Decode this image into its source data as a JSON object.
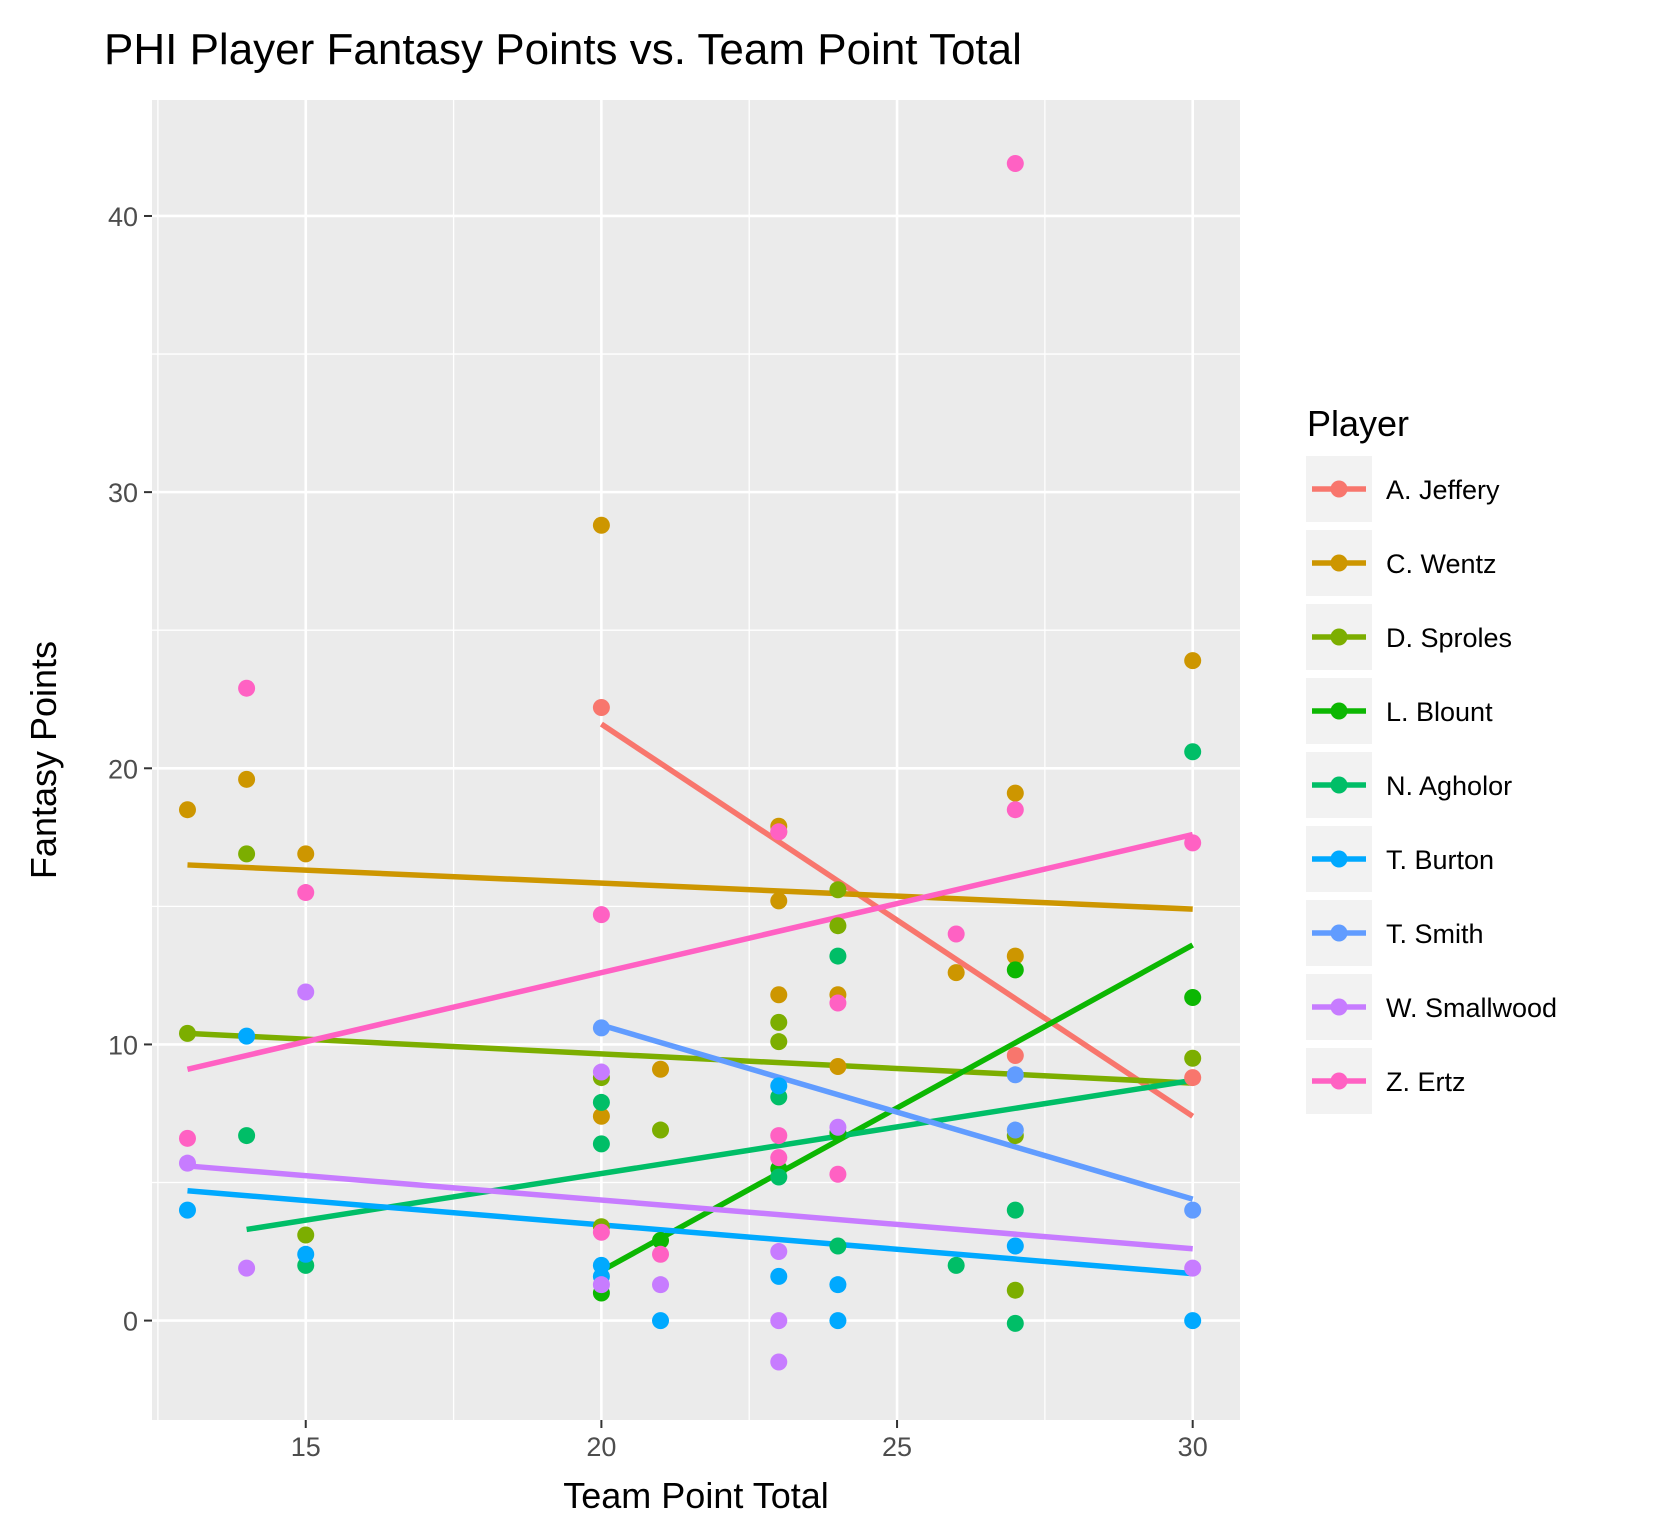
{
  "chart_data": {
    "type": "scatter",
    "title": "PHI Player Fantasy Points vs. Team Point Total",
    "xlabel": "Team Point Total",
    "ylabel": "Fantasy Points",
    "xlim": [
      12.4,
      30.8
    ],
    "ylim": [
      -3.6,
      44.2
    ],
    "xticks": [
      15,
      20,
      25,
      30
    ],
    "yticks": [
      0,
      10,
      20,
      30,
      40
    ],
    "grid": true,
    "legend_title": "Player",
    "legend_position": "right",
    "series": [
      {
        "name": "A. Jeffery",
        "color": "#F8766D",
        "points": [
          [
            20,
            22.2
          ],
          [
            23,
            17.7
          ],
          [
            27,
            9.6
          ],
          [
            30,
            8.8
          ]
        ],
        "trend": [
          [
            20,
            21.6
          ],
          [
            30,
            7.4
          ]
        ]
      },
      {
        "name": "C. Wentz",
        "color": "#CD9600",
        "points": [
          [
            13,
            18.5
          ],
          [
            14,
            19.6
          ],
          [
            15,
            16.9
          ],
          [
            20,
            28.8
          ],
          [
            20,
            7.4
          ],
          [
            21,
            9.1
          ],
          [
            23,
            17.9
          ],
          [
            23,
            15.2
          ],
          [
            23,
            11.8
          ],
          [
            24,
            11.8
          ],
          [
            24,
            9.2
          ],
          [
            26,
            12.6
          ],
          [
            27,
            19.1
          ],
          [
            27,
            13.2
          ],
          [
            30,
            23.9
          ]
        ],
        "trend": [
          [
            13,
            16.5
          ],
          [
            30,
            14.9
          ]
        ]
      },
      {
        "name": "D. Sproles",
        "color": "#7CAE00",
        "points": [
          [
            13,
            10.4
          ],
          [
            14,
            16.9
          ],
          [
            15,
            3.1
          ],
          [
            20,
            8.8
          ],
          [
            20,
            3.4
          ],
          [
            21,
            6.9
          ],
          [
            23,
            10.8
          ],
          [
            23,
            10.1
          ],
          [
            24,
            15.6
          ],
          [
            24,
            14.3
          ],
          [
            27,
            6.7
          ],
          [
            27,
            1.1
          ],
          [
            30,
            9.5
          ]
        ],
        "trend": [
          [
            13,
            10.4
          ],
          [
            30,
            8.6
          ]
        ]
      },
      {
        "name": "L. Blount",
        "color": "#0CB702",
        "points": [
          [
            20,
            1.0
          ],
          [
            21,
            2.9
          ],
          [
            23,
            5.5
          ],
          [
            24,
            6.8
          ],
          [
            27,
            12.7
          ],
          [
            30,
            11.7
          ]
        ],
        "trend": [
          [
            20,
            1.8
          ],
          [
            30,
            13.6
          ]
        ]
      },
      {
        "name": "N. Agholor",
        "color": "#00BE67",
        "points": [
          [
            14,
            6.7
          ],
          [
            15,
            2.0
          ],
          [
            20,
            7.9
          ],
          [
            20,
            6.4
          ],
          [
            23,
            8.1
          ],
          [
            23,
            5.2
          ],
          [
            24,
            13.2
          ],
          [
            24,
            2.7
          ],
          [
            26,
            2.0
          ],
          [
            27,
            4.0
          ],
          [
            27,
            -0.1
          ],
          [
            30,
            20.6
          ]
        ],
        "trend": [
          [
            14,
            3.3
          ],
          [
            30,
            8.7
          ]
        ]
      },
      {
        "name": "T. Burton",
        "color": "#00A9FF",
        "points": [
          [
            13,
            4.0
          ],
          [
            14,
            10.3
          ],
          [
            15,
            2.4
          ],
          [
            20,
            2.0
          ],
          [
            20,
            1.6
          ],
          [
            21,
            0.0
          ],
          [
            23,
            8.5
          ],
          [
            23,
            1.6
          ],
          [
            24,
            1.3
          ],
          [
            24,
            0.0
          ],
          [
            27,
            2.7
          ],
          [
            30,
            0.0
          ]
        ],
        "trend": [
          [
            13,
            4.7
          ],
          [
            30,
            1.7
          ]
        ]
      },
      {
        "name": "T. Smith",
        "color": "#619CFF",
        "points": [
          [
            20,
            10.6
          ],
          [
            27,
            8.9
          ],
          [
            27,
            6.9
          ],
          [
            30,
            4.0
          ]
        ],
        "trend": [
          [
            20,
            10.7
          ],
          [
            30,
            4.4
          ]
        ]
      },
      {
        "name": "W. Smallwood",
        "color": "#C77CFF",
        "points": [
          [
            13,
            5.7
          ],
          [
            14,
            1.9
          ],
          [
            15,
            11.9
          ],
          [
            20,
            9.0
          ],
          [
            20,
            1.3
          ],
          [
            21,
            1.3
          ],
          [
            23,
            2.5
          ],
          [
            23,
            0.0
          ],
          [
            23,
            -1.5
          ],
          [
            24,
            7.0
          ],
          [
            30,
            1.9
          ]
        ],
        "trend": [
          [
            13,
            5.6
          ],
          [
            30,
            2.6
          ]
        ]
      },
      {
        "name": "Z. Ertz",
        "color": "#FF61C3",
        "points": [
          [
            13,
            6.6
          ],
          [
            14,
            22.9
          ],
          [
            15,
            15.5
          ],
          [
            20,
            14.7
          ],
          [
            20,
            3.2
          ],
          [
            21,
            2.4
          ],
          [
            23,
            17.7
          ],
          [
            23,
            6.7
          ],
          [
            23,
            5.9
          ],
          [
            24,
            11.5
          ],
          [
            24,
            5.3
          ],
          [
            26,
            14.0
          ],
          [
            27,
            41.9
          ],
          [
            27,
            18.5
          ],
          [
            30,
            17.3
          ]
        ],
        "trend": [
          [
            13,
            9.1
          ],
          [
            30,
            17.6
          ]
        ]
      }
    ]
  }
}
